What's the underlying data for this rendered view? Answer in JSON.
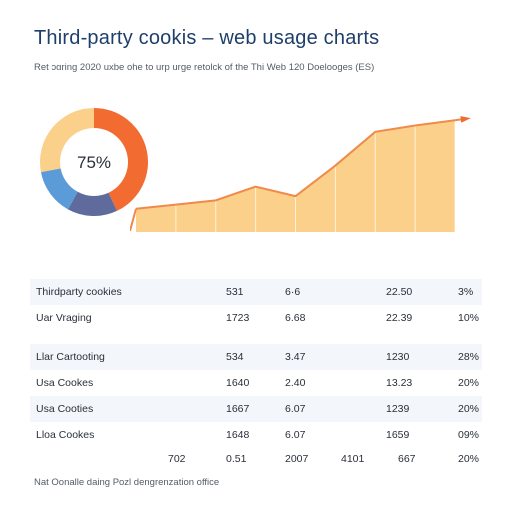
{
  "title": "Third-party cookis – web usage charts",
  "subtitle": "Ret ɔɑring 2020 uxbe ohe to urp urge retolck of the Thi Web 120 Doelooges (ES)",
  "footnote": "Nat Oonalle daing Pozl dengrenzation office",
  "colors": {
    "title": "#1f3f6b",
    "accent_orange": "#f26b30",
    "area_fill": "#fbd08a",
    "area_line": "#f08a4b",
    "donut_orange": "#f26b30",
    "donut_navy": "#5e6b9c",
    "donut_blue": "#5b9bd8",
    "donut_cream": "#fbd08a"
  },
  "chart_data": [
    {
      "type": "pie",
      "center_label": "75%",
      "values": [
        43,
        15,
        14,
        28
      ]
    },
    {
      "type": "area",
      "x": [
        0,
        1,
        2,
        3,
        4,
        5,
        6,
        7,
        8
      ],
      "values": [
        22,
        26,
        30,
        43,
        34,
        63,
        95,
        101,
        106
      ],
      "ylim": [
        0,
        110
      ],
      "grid": false,
      "arrow": true
    },
    {
      "type": "table",
      "rows": [
        [
          "Thirdparty cookies",
          "531",
          "6·6",
          "22.50",
          "3%"
        ],
        [
          "Uar Vraging",
          "1723",
          "6.68",
          "22.39",
          "10%"
        ],
        [
          "Llar Cartooting",
          "534",
          "3.47",
          "1230",
          "28%"
        ],
        [
          "Usa Cookes",
          "1640",
          "2.40",
          "13.23",
          "20%"
        ],
        [
          "Usa Cooties",
          "1667",
          "6.07",
          "1239",
          "20%"
        ],
        [
          "Lloa Cookes",
          "1648",
          "6.07",
          "1659",
          "09%"
        ]
      ],
      "totals": [
        "702",
        "0.51",
        "2007",
        "4101",
        "667",
        "20%"
      ]
    }
  ]
}
